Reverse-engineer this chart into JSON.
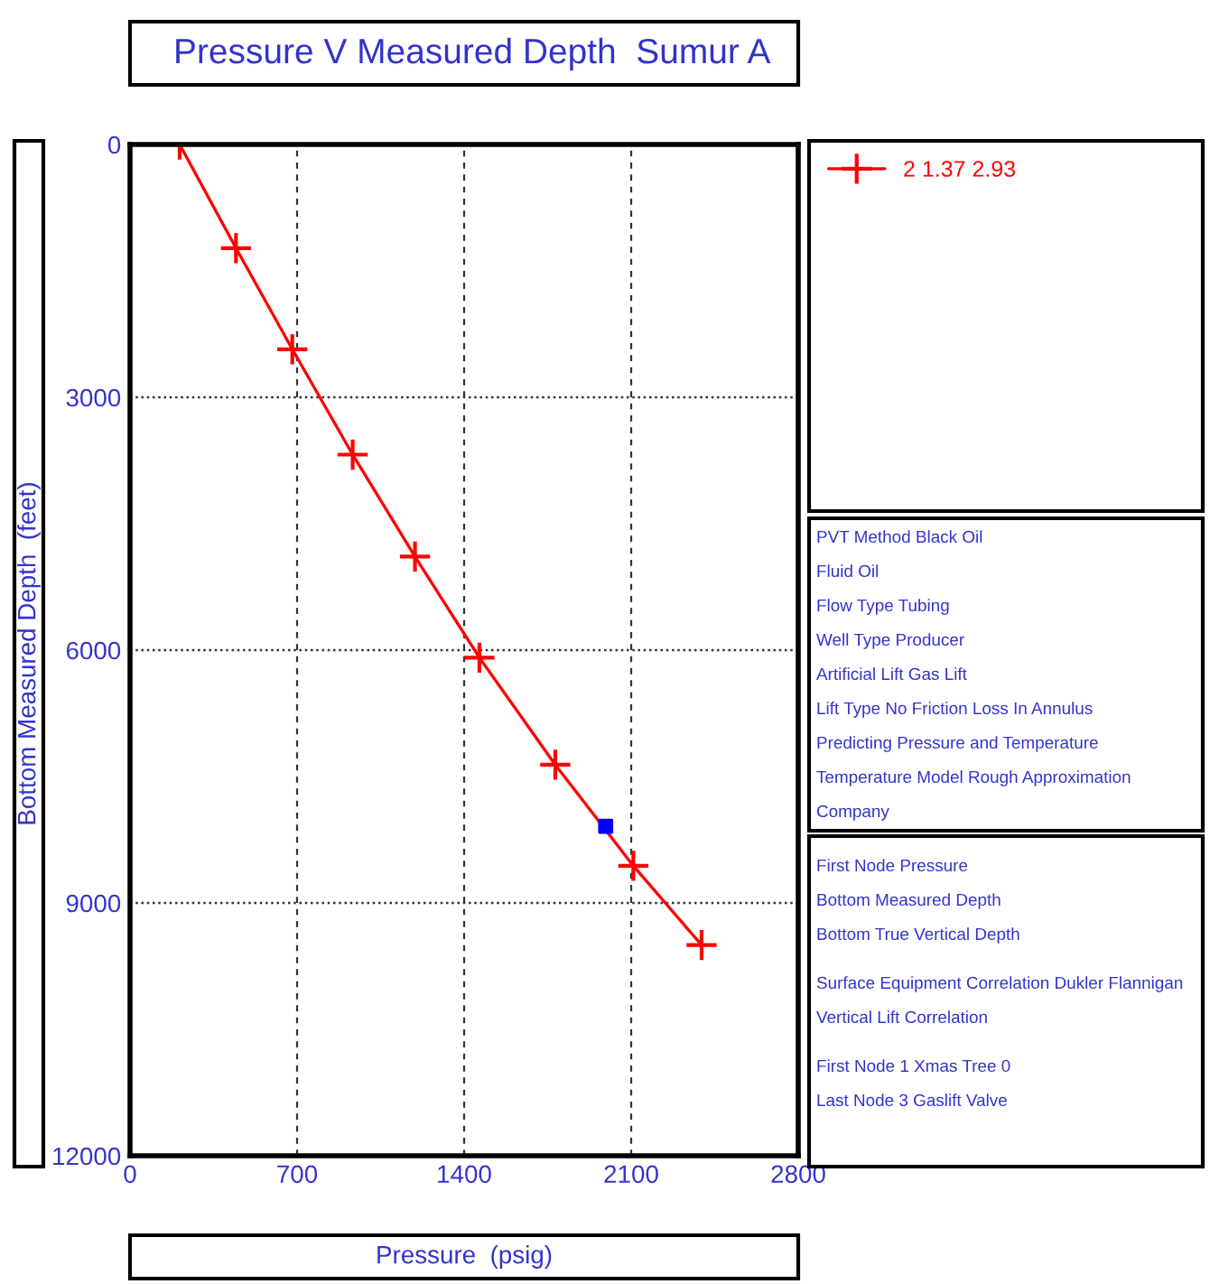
{
  "chart_data": {
    "type": "line",
    "title": "Pressure V Measured Depth  Sumur A",
    "xlabel": "Pressure  (psig)",
    "ylabel": "Bottom Measured Depth  (feet)",
    "series": [
      {
        "name": "2 1.37 2.93",
        "color": "#ff0000",
        "marker": "cross",
        "x": [
          208,
          444,
          680,
          933,
          1194,
          1464,
          1782,
          2109,
          2395
        ],
        "values": [
          0,
          1230,
          2430,
          3680,
          4890,
          6090,
          7360,
          8560,
          9500
        ]
      },
      {
        "type": "scatter",
        "color": "#0000ff",
        "marker": "square",
        "x": [
          1993
        ],
        "values": [
          8090
        ]
      }
    ],
    "xlim": [
      0,
      2800
    ],
    "xticks": [
      0,
      700,
      1400,
      2100,
      2800
    ],
    "ylim": [
      12000,
      0
    ],
    "yticks": [
      0,
      3000,
      6000,
      9000,
      12000
    ],
    "grid": true,
    "legend": "right",
    "annotations": [
      "PVT Method Black Oil",
      "Fluid Oil",
      "Flow Type Tubing",
      "Well Type Producer",
      "Artificial Lift Gas Lift",
      "Lift Type No Friction Loss In Annulus",
      "Predicting Pressure and Temperature",
      "Temperature Model Rough Approximation",
      "Company",
      "First Node Pressure",
      "Bottom Measured Depth",
      "Bottom True Vertical Depth",
      "Surface Equipment Correlation Dukler Flannigan",
      "Vertical Lift Correlation",
      "First Node 1 Xmas Tree 0",
      "Last Node 3 Gaslift Valve"
    ]
  }
}
